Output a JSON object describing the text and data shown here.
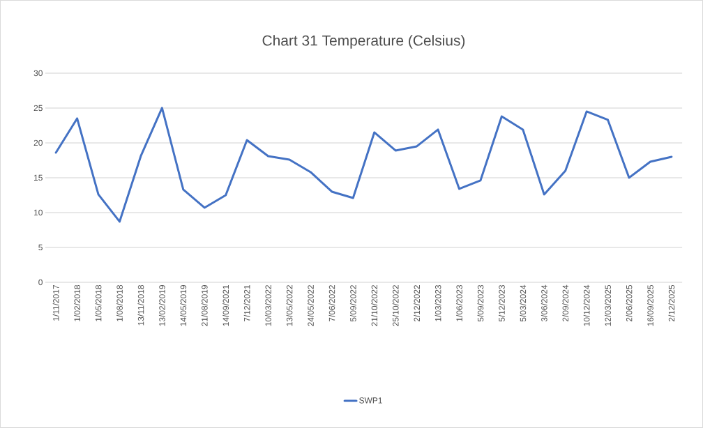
{
  "chart_data": {
    "type": "line",
    "title": "Chart 31 Temperature (Celsius)",
    "categories": [
      "1/11/2017",
      "1/02/2018",
      "1/05/2018",
      "1/08/2018",
      "13/11/2018",
      "13/02/2019",
      "14/05/2019",
      "21/08/2019",
      "14/09/2021",
      "7/12/2021",
      "10/03/2022",
      "13/05/2022",
      "24/05/2022",
      "7/06/2022",
      "5/09/2022",
      "21/10/2022",
      "25/10/2022",
      "2/12/2022",
      "1/03/2023",
      "1/06/2023",
      "5/09/2023",
      "5/12/2023",
      "5/03/2024",
      "3/06/2024",
      "2/09/2024",
      "10/12/2024",
      "12/03/2025",
      "2/06/2025",
      "16/09/2025",
      "2/12/2025"
    ],
    "series": [
      {
        "name": "SWP1",
        "color": "#4472c4",
        "values": [
          18.6,
          23.5,
          12.6,
          8.7,
          18.1,
          25.0,
          13.3,
          10.7,
          12.5,
          20.4,
          18.1,
          17.6,
          15.8,
          13.0,
          12.1,
          21.5,
          18.9,
          19.5,
          21.9,
          13.4,
          14.6,
          23.8,
          21.9,
          12.6,
          16.0,
          24.5,
          23.3,
          15.0,
          17.3,
          18.0
        ]
      }
    ],
    "ylim": [
      0,
      30
    ],
    "yticks": [
      0,
      5,
      10,
      15,
      20,
      25,
      30
    ],
    "grid": "y",
    "legend": "bottom",
    "marker": "none",
    "line_style": "solid"
  }
}
